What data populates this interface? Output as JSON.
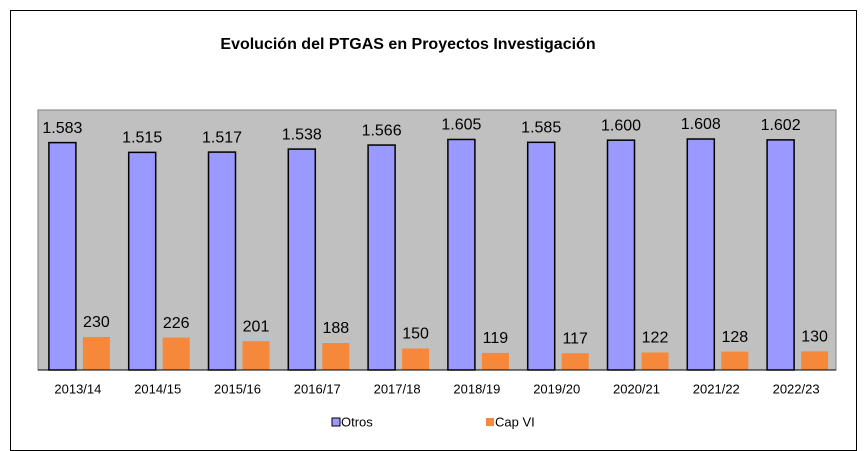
{
  "chart_data": {
    "type": "bar",
    "title": "Evolución del PTGAS en Proyectos Investigación",
    "categories": [
      "2013/14",
      "2014/15",
      "2015/16",
      "2016/17",
      "2017/18",
      "2018/19",
      "2019/20",
      "2020/21",
      "2021/22",
      "2022/23"
    ],
    "series": [
      {
        "name": "Otros",
        "color": "#9999ff",
        "values": [
          1583,
          1515,
          1517,
          1538,
          1566,
          1605,
          1585,
          1600,
          1608,
          1602
        ],
        "value_labels": [
          "1.583",
          "1.515",
          "1.517",
          "1.538",
          "1.566",
          "1.605",
          "1.585",
          "1.600",
          "1.608",
          "1.602"
        ]
      },
      {
        "name": "Cap VI",
        "color": "#f5883a",
        "values": [
          230,
          226,
          201,
          188,
          150,
          119,
          117,
          122,
          128,
          130
        ]
      }
    ],
    "ylim": [
      0,
      1810
    ],
    "legend": "bottom"
  }
}
